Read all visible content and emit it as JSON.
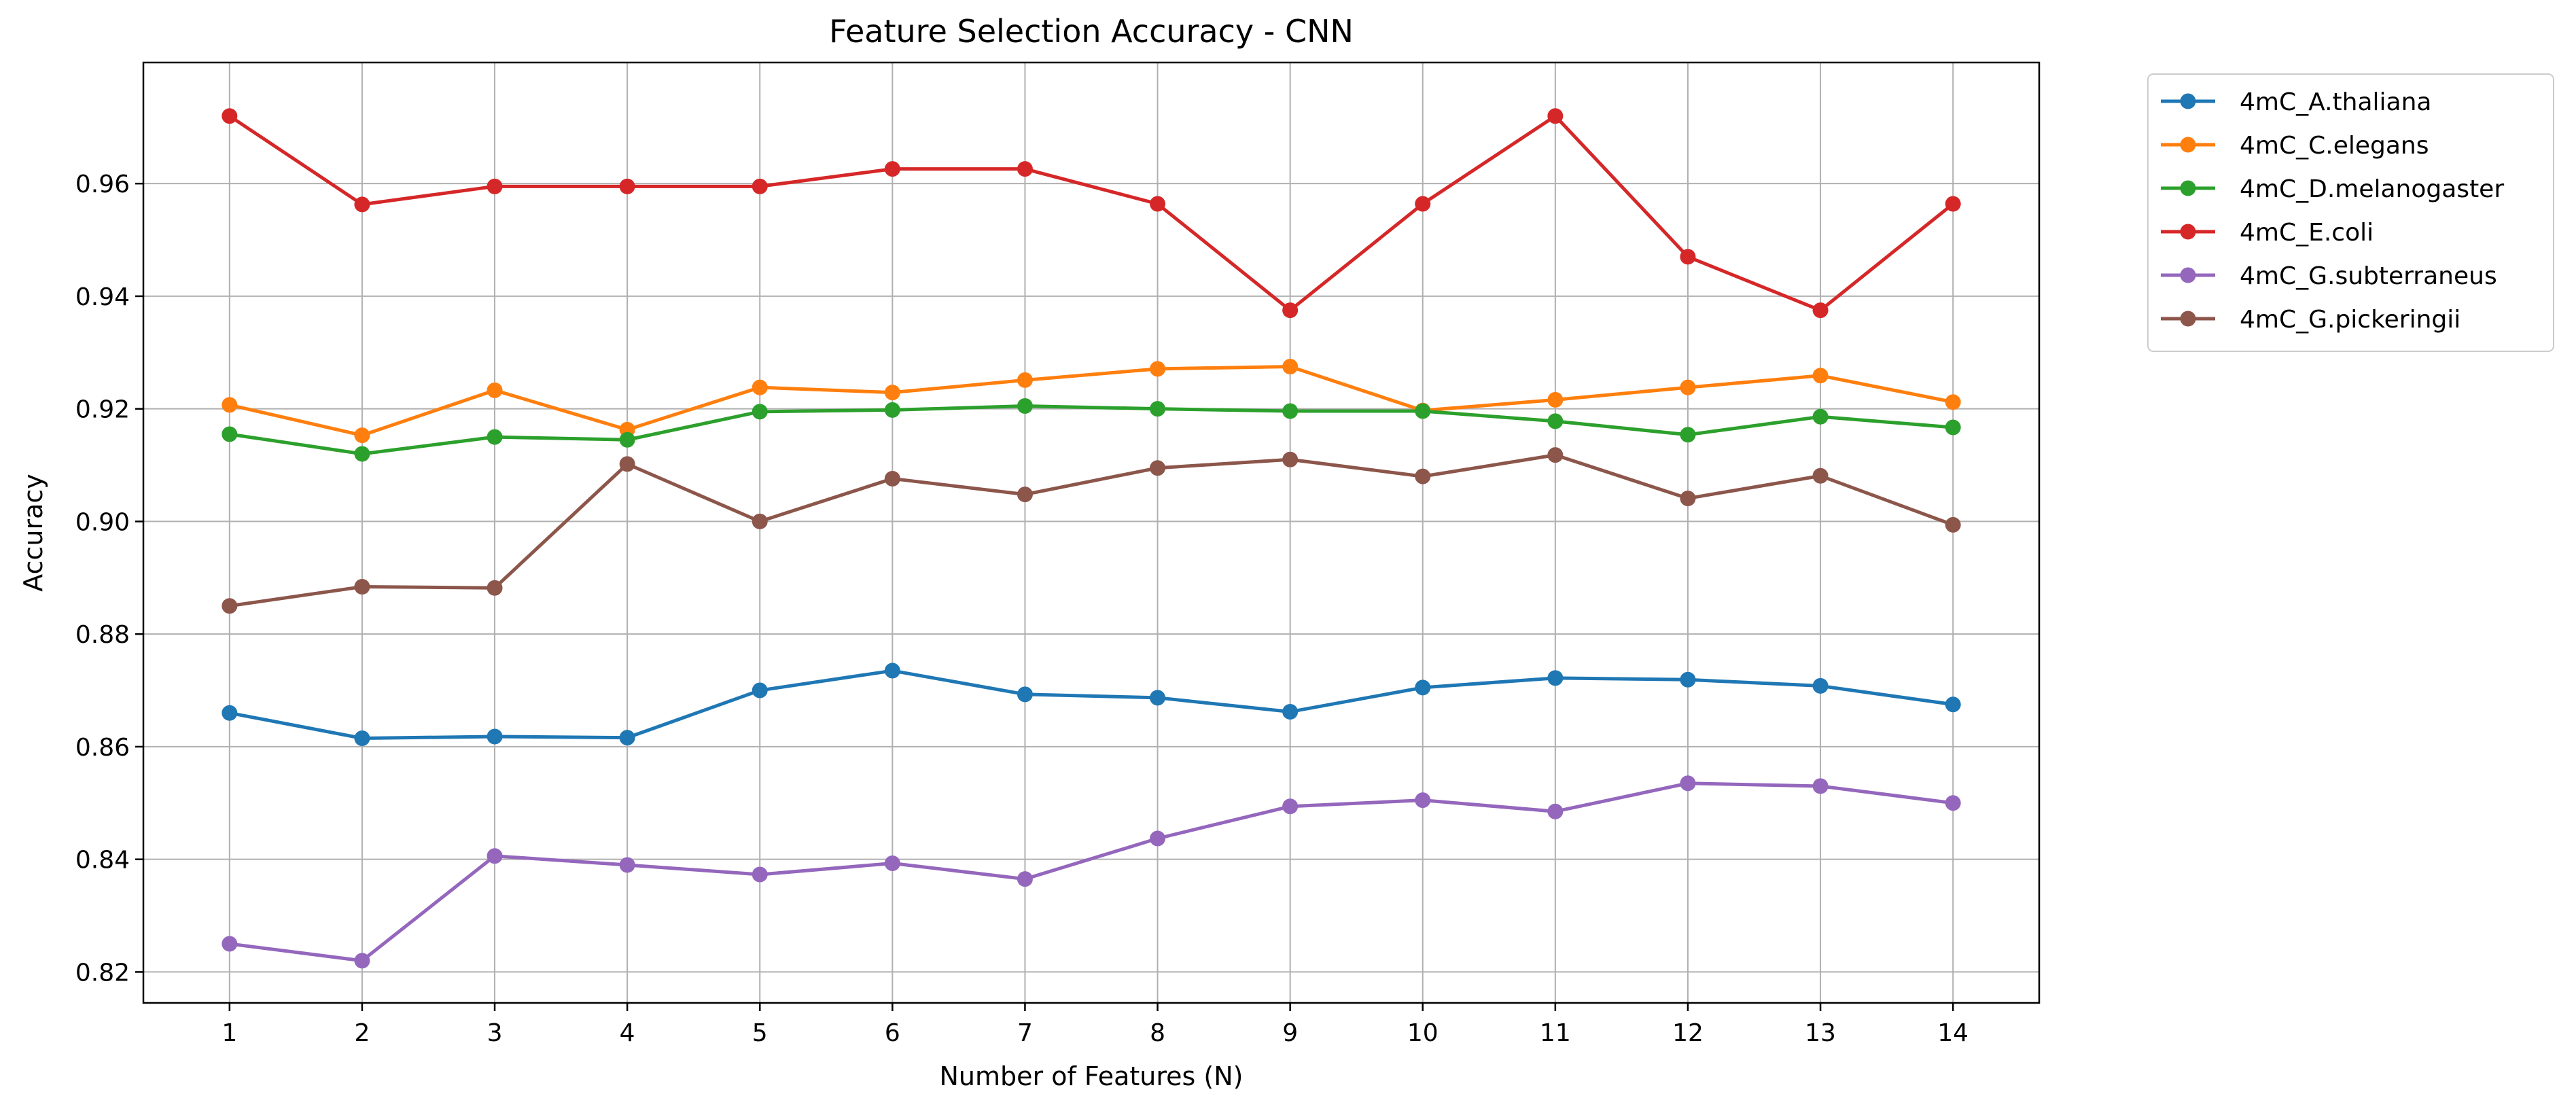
{
  "chart_data": {
    "type": "line",
    "title": "Feature Selection Accuracy - CNN",
    "xlabel": "Number of Features (N)",
    "ylabel": "Accuracy",
    "x": [
      1,
      2,
      3,
      4,
      5,
      6,
      7,
      8,
      9,
      10,
      11,
      12,
      13,
      14
    ],
    "xlim": [
      0.35,
      14.65
    ],
    "ylim": [
      0.8145,
      0.9815
    ],
    "yticks": [
      0.82,
      0.84,
      0.86,
      0.88,
      0.9,
      0.92,
      0.94,
      0.96
    ],
    "ytick_labels": [
      "0.82",
      "0.84",
      "0.86",
      "0.88",
      "0.90",
      "0.92",
      "0.94",
      "0.96"
    ],
    "xtick_labels": [
      "1",
      "2",
      "3",
      "4",
      "5",
      "6",
      "7",
      "8",
      "9",
      "10",
      "11",
      "12",
      "13",
      "14"
    ],
    "grid": true,
    "legend_position": "outside-top-right",
    "series": [
      {
        "name": "4mC_A.thaliana",
        "color": "#1f77b4",
        "values": [
          0.866,
          0.8615,
          0.8618,
          0.8616,
          0.87,
          0.8735,
          0.8693,
          0.8687,
          0.8662,
          0.8705,
          0.8722,
          0.8719,
          0.8708,
          0.8675
        ]
      },
      {
        "name": "4mC_C.elegans",
        "color": "#ff7f0e",
        "values": [
          0.9207,
          0.9153,
          0.9233,
          0.9163,
          0.9238,
          0.9229,
          0.9251,
          0.9271,
          0.9275,
          0.9197,
          0.9216,
          0.9238,
          0.9259,
          0.9212
        ]
      },
      {
        "name": "4mC_D.melanogaster",
        "color": "#2ca02c",
        "values": [
          0.9155,
          0.912,
          0.915,
          0.9145,
          0.9195,
          0.9198,
          0.9205,
          0.92,
          0.9196,
          0.9196,
          0.9178,
          0.9154,
          0.9186,
          0.9167
        ]
      },
      {
        "name": "4mC_E.coli",
        "color": "#d62728",
        "values": [
          0.972,
          0.9563,
          0.9595,
          0.9595,
          0.9595,
          0.9626,
          0.9626,
          0.9564,
          0.9375,
          0.9564,
          0.972,
          0.947,
          0.9375,
          0.9564
        ]
      },
      {
        "name": "4mC_G.subterraneus",
        "color": "#9467bd",
        "values": [
          0.825,
          0.822,
          0.8406,
          0.839,
          0.8373,
          0.8393,
          0.8365,
          0.8437,
          0.8494,
          0.8505,
          0.8485,
          0.8535,
          0.853,
          0.85
        ]
      },
      {
        "name": "4mC_G.pickeringii",
        "color": "#8c564b",
        "values": [
          0.885,
          0.8884,
          0.8882,
          0.9102,
          0.9,
          0.9076,
          0.9048,
          0.9095,
          0.911,
          0.908,
          0.9118,
          0.9041,
          0.9081,
          0.8994
        ]
      }
    ]
  }
}
